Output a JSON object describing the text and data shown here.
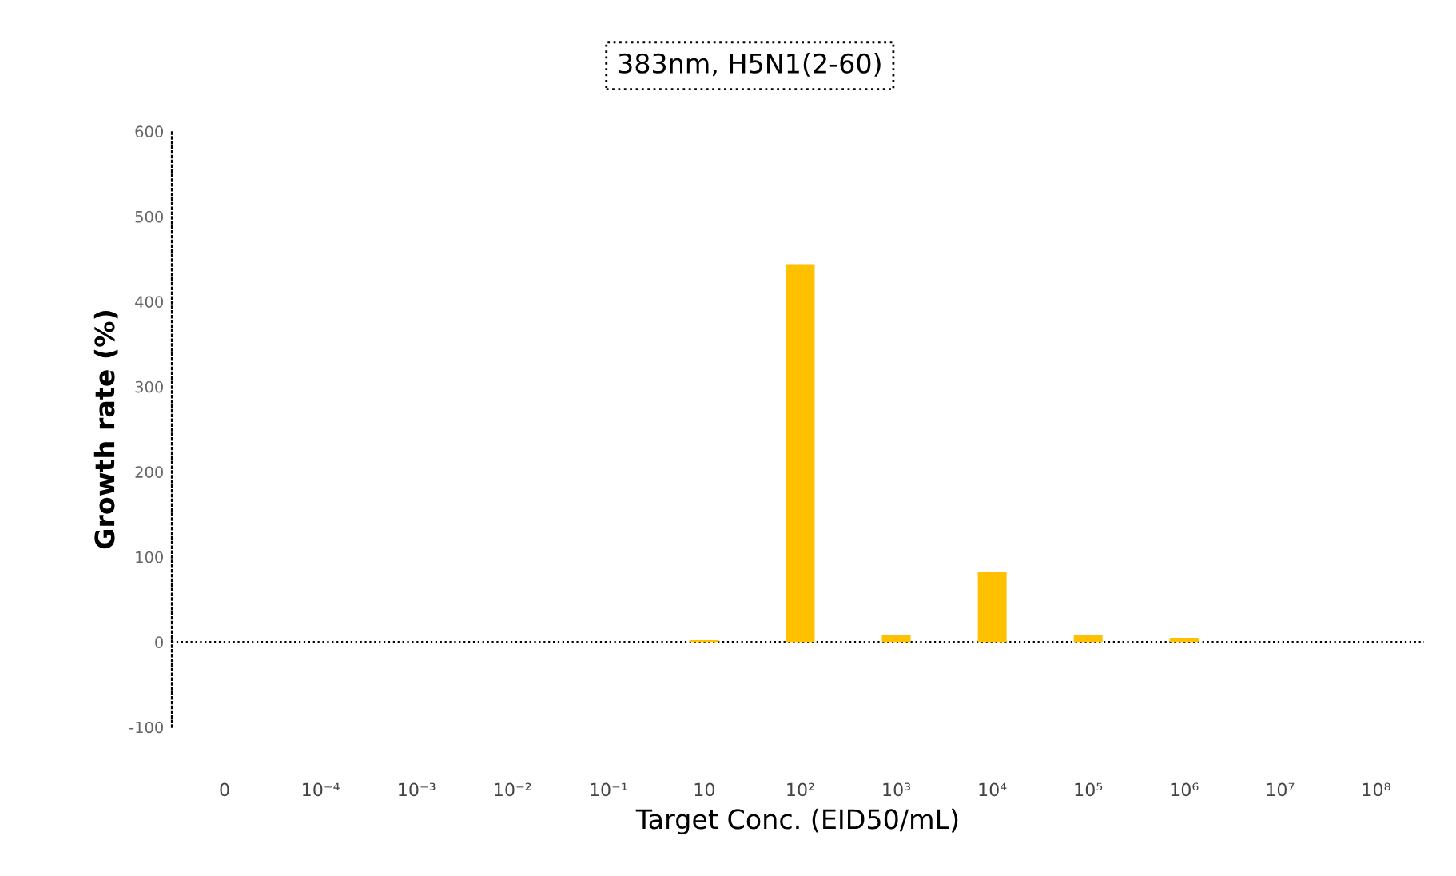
{
  "chart_data": {
    "type": "bar",
    "title": "383nm, H5N1(2-60)",
    "xlabel": "Target Conc. (EID50/mL)",
    "ylabel": "Growth rate (%)",
    "categories": [
      "0",
      "10⁻⁴",
      "10⁻³",
      "10⁻²",
      "10⁻¹",
      "10",
      "10²",
      "10³",
      "10⁴",
      "10⁵",
      "10⁶",
      "10⁷",
      "10⁸"
    ],
    "values": [
      0,
      0,
      0,
      0,
      0,
      2,
      444,
      8,
      82,
      8,
      5,
      0,
      0
    ],
    "color": "#ffc000",
    "ylim": [
      -100,
      600
    ],
    "yticks": [
      -100,
      0,
      100,
      200,
      300,
      400,
      500,
      600
    ],
    "grid": false,
    "ref_lines": [
      {
        "axis": "y",
        "value": 0,
        "color": "#000000",
        "line_style": "dotted"
      }
    ]
  }
}
